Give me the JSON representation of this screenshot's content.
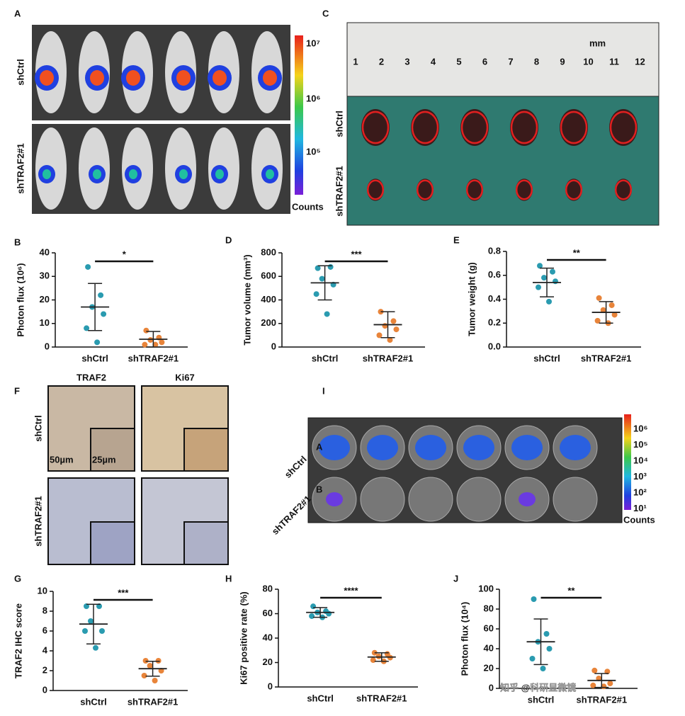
{
  "panel_labels": [
    "A",
    "B",
    "C",
    "D",
    "E",
    "F",
    "G",
    "H",
    "I",
    "J"
  ],
  "panel_a": {
    "row_labels": [
      "shCtrl",
      "shTRAF2#1"
    ],
    "colorbar_ticks": [
      "10⁷",
      "10⁶",
      "10⁵"
    ],
    "colorbar_title": "Counts"
  },
  "panel_c": {
    "ruler_numbers": [
      "1",
      "2",
      "3",
      "4",
      "5",
      "6",
      "7",
      "8",
      "9",
      "10",
      "11",
      "12"
    ],
    "ruler_unit": "mm",
    "row_labels": [
      "shCtrl",
      "shTRAF2#1"
    ]
  },
  "panel_f": {
    "column_labels": [
      "TRAF2",
      "Ki67"
    ],
    "row_labels": [
      "shCtrl",
      "shTRAF2#1"
    ],
    "scale_bars": [
      "50µm",
      "25µm"
    ]
  },
  "panel_i": {
    "row_labels": [
      "shCtrl",
      "shTRAF2#1"
    ],
    "well_rows": [
      "A",
      "B"
    ],
    "colorbar_ticks": [
      "10⁶",
      "10⁵",
      "10⁴",
      "10³",
      "10²",
      "10¹"
    ],
    "colorbar_title": "Counts"
  },
  "watermark": "知乎 @科研显微镜",
  "chart_data": [
    {
      "type": "scatter",
      "y_label": "Photon flux (10⁶)",
      "categories": [
        "shCtrl",
        "shTRAF2#1"
      ],
      "significance": "*",
      "ylim": [
        0,
        40
      ],
      "yticks": [
        0,
        10,
        20,
        30,
        40
      ],
      "series": [
        {
          "color": "#2a9bb0",
          "values": [
            34,
            22,
            17,
            14,
            8,
            2
          ],
          "mean": 17,
          "sd": 10
        },
        {
          "color": "#e8843a",
          "values": [
            7,
            4,
            3,
            2,
            1,
            1
          ],
          "mean": 3.3,
          "sd": 3.3
        }
      ]
    },
    {
      "type": "scatter",
      "y_label": "Tumor volume (mm³)",
      "categories": [
        "shCtrl",
        "shTRAF2#1"
      ],
      "significance": "***",
      "ylim": [
        0,
        800
      ],
      "yticks": [
        0,
        200,
        400,
        600,
        800
      ],
      "series": [
        {
          "color": "#2a9bb0",
          "values": [
            670,
            680,
            580,
            530,
            450,
            280
          ],
          "mean": 545,
          "sd": 145
        },
        {
          "color": "#e8843a",
          "values": [
            300,
            220,
            180,
            150,
            100,
            60
          ],
          "mean": 190,
          "sd": 110
        }
      ]
    },
    {
      "type": "scatter",
      "y_label": "Tumor weight (g)",
      "categories": [
        "shCtrl",
        "shTRAF2#1"
      ],
      "significance": "**",
      "ylim": [
        0,
        0.8
      ],
      "yticks": [
        {
          "value": 0,
          "label": "0.0"
        },
        0.2,
        0.4,
        0.6,
        0.8
      ],
      "series": [
        {
          "color": "#2a9bb0",
          "values": [
            0.68,
            0.63,
            0.58,
            0.55,
            0.5,
            0.38
          ],
          "mean": 0.54,
          "sd": 0.12
        },
        {
          "color": "#e8843a",
          "values": [
            0.41,
            0.35,
            0.31,
            0.27,
            0.22,
            0.2
          ],
          "mean": 0.29,
          "sd": 0.09
        }
      ]
    },
    {
      "type": "scatter",
      "y_label": "TRAF2 IHC score",
      "categories": [
        "shCtrl",
        "shTRAF2#1"
      ],
      "significance": "***",
      "ylim": [
        0,
        10
      ],
      "yticks": [
        0,
        2,
        4,
        6,
        8,
        10
      ],
      "series": [
        {
          "color": "#2a9bb0",
          "values": [
            8.5,
            8.5,
            7,
            6,
            6,
            4.3
          ],
          "mean": 6.7,
          "sd": 2
        },
        {
          "color": "#e8843a",
          "values": [
            3,
            3,
            2.5,
            2,
            1.5,
            1
          ],
          "mean": 2.2,
          "sd": 0.75
        }
      ]
    },
    {
      "type": "scatter",
      "y_label": "Ki67 positive rate (%)",
      "categories": [
        "shCtrl",
        "shTRAF2#1"
      ],
      "significance": "****",
      "ylim": [
        0,
        80
      ],
      "yticks": [
        0,
        20,
        40,
        60,
        80
      ],
      "series": [
        {
          "color": "#2a9bb0",
          "values": [
            66,
            62,
            61,
            60,
            58,
            57
          ],
          "mean": 61,
          "sd": 4
        },
        {
          "color": "#e8843a",
          "values": [
            28,
            27,
            25,
            24,
            22,
            21
          ],
          "mean": 24.5,
          "sd": 3.5
        }
      ]
    },
    {
      "type": "scatter",
      "y_label": "Photon flux (10⁴)",
      "categories": [
        "shCtrl",
        "shTRAF2#1"
      ],
      "significance": "**",
      "ylim": [
        0,
        100
      ],
      "yticks": [
        0,
        20,
        40,
        60,
        80,
        100
      ],
      "series": [
        {
          "color": "#2a9bb0",
          "values": [
            90,
            55,
            47,
            40,
            30,
            20
          ],
          "mean": 47,
          "sd": 23
        },
        {
          "color": "#e8843a",
          "values": [
            18,
            17,
            10,
            5,
            3,
            2
          ],
          "mean": 8,
          "sd": 7
        }
      ]
    }
  ]
}
